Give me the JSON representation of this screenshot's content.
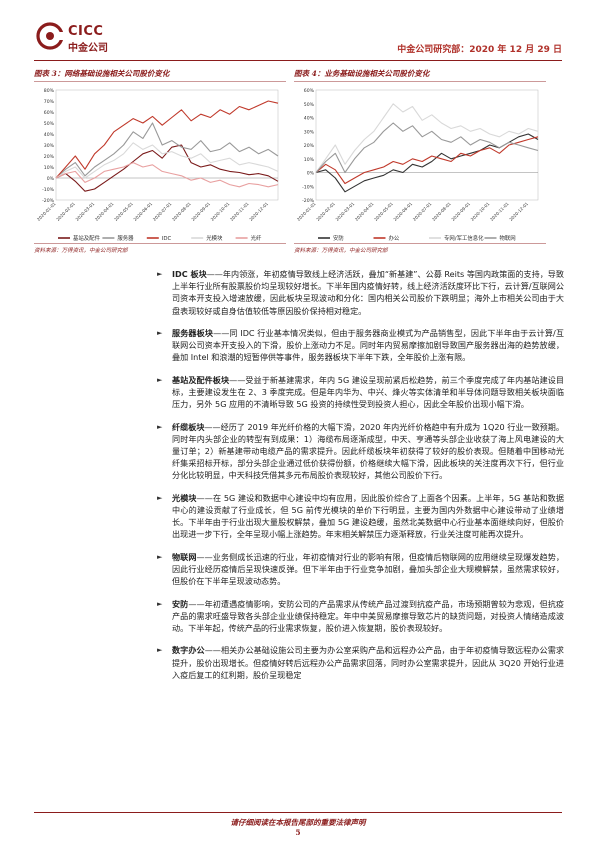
{
  "header": {
    "logo_en": "CICC",
    "logo_cn": "中金公司",
    "right_text": "中金公司研究部：2020 年 12 月 29 日"
  },
  "figures": {
    "left_title": "图表 3：网络基础设施相关公司股价变化",
    "right_title": "图表 4：业务基础设施相关公司股价变化",
    "left_source": "资料来源：万得资讯，中金公司研究部",
    "right_source": "资料来源：万得资讯，中金公司研究部"
  },
  "chart_data": [
    {
      "type": "line",
      "title": "图表 3：网络基础设施相关公司股价变化",
      "ylim": [
        -20,
        80
      ],
      "ytick_labels": [
        "80%",
        "70%",
        "60%",
        "50%",
        "40%",
        "30%",
        "20%",
        "10%",
        "0%",
        "-10%",
        "-20%"
      ],
      "x_tick_labels": [
        "2020-01-01",
        "2020-02-01",
        "2020-03-01",
        "2020-04-01",
        "2020-05-01",
        "2020-06-01",
        "2020-07-01",
        "2020-08-01",
        "2020-09-01",
        "2020-10-01",
        "2020-11-01",
        "2020-12-01"
      ],
      "x": [
        0,
        0.5,
        1,
        1.5,
        2,
        2.5,
        3,
        3.5,
        4,
        4.5,
        5,
        5.5,
        6,
        6.5,
        7,
        7.5,
        8,
        8.5,
        9,
        9.5,
        10,
        10.5,
        11,
        11.5
      ],
      "series": [
        {
          "name": "基站及配件",
          "color": "#7a1a1a",
          "values": [
            0,
            4,
            -3,
            -12,
            -10,
            -4,
            2,
            8,
            15,
            22,
            25,
            18,
            28,
            30,
            14,
            10,
            12,
            8,
            6,
            5,
            3,
            4,
            2,
            -3
          ]
        },
        {
          "name": "服务器",
          "color": "#999999",
          "values": [
            0,
            8,
            14,
            2,
            10,
            16,
            22,
            30,
            42,
            36,
            50,
            30,
            34,
            28,
            26,
            34,
            24,
            26,
            32,
            24,
            28,
            22,
            26,
            20
          ]
        },
        {
          "name": "IDC",
          "color": "#c0392b",
          "values": [
            0,
            10,
            20,
            8,
            22,
            30,
            42,
            48,
            54,
            50,
            56,
            48,
            55,
            62,
            52,
            58,
            55,
            62,
            58,
            65,
            62,
            66,
            70,
            68
          ]
        },
        {
          "name": "光模块",
          "color": "#d9d9d9",
          "values": [
            0,
            6,
            10,
            0,
            6,
            12,
            16,
            22,
            32,
            26,
            30,
            22,
            24,
            20,
            18,
            22,
            14,
            16,
            18,
            12,
            14,
            12,
            10,
            6
          ]
        },
        {
          "name": "光纤",
          "color": "#e8a0a0",
          "values": [
            0,
            4,
            6,
            -4,
            0,
            6,
            8,
            10,
            14,
            10,
            12,
            6,
            4,
            2,
            -2,
            0,
            -4,
            -2,
            -6,
            -8,
            -5,
            -6,
            -8,
            -6
          ]
        }
      ]
    },
    {
      "type": "line",
      "title": "图表 4：业务基础设施相关公司股价变化",
      "ylim": [
        -20,
        60
      ],
      "ytick_labels": [
        "60%",
        "50%",
        "40%",
        "30%",
        "20%",
        "10%",
        "0%",
        "-10%",
        "-20%"
      ],
      "x_tick_labels": [
        "2020-01-01",
        "2020-02-01",
        "2020-03-01",
        "2020-04-01",
        "2020-05-01",
        "2020-06-01",
        "2020-07-01",
        "2020-08-01",
        "2020-09-01",
        "2020-10-01",
        "2020-11-01",
        "2020-12-01"
      ],
      "x": [
        0,
        0.5,
        1,
        1.5,
        2,
        2.5,
        3,
        3.5,
        4,
        4.5,
        5,
        5.5,
        6,
        6.5,
        7,
        7.5,
        8,
        8.5,
        9,
        9.5,
        10,
        10.5,
        11,
        11.5
      ],
      "series": [
        {
          "name": "安防",
          "color": "#333333",
          "values": [
            0,
            2,
            -4,
            -14,
            -10,
            -6,
            -4,
            -2,
            2,
            0,
            6,
            4,
            8,
            14,
            10,
            12,
            14,
            16,
            20,
            18,
            22,
            26,
            28,
            24
          ]
        },
        {
          "name": "办公",
          "color": "#c0392b",
          "values": [
            0,
            6,
            2,
            -8,
            -4,
            0,
            2,
            4,
            8,
            6,
            10,
            8,
            12,
            10,
            8,
            14,
            12,
            16,
            18,
            14,
            20,
            22,
            24,
            26
          ]
        },
        {
          "name": "专网/军工信息化",
          "color": "#d9d9d9",
          "values": [
            0,
            10,
            20,
            6,
            16,
            24,
            30,
            40,
            50,
            44,
            48,
            38,
            42,
            36,
            32,
            34,
            30,
            32,
            28,
            26,
            30,
            28,
            32,
            30
          ]
        },
        {
          "name": "物联网",
          "color": "#999999",
          "values": [
            0,
            8,
            14,
            0,
            10,
            18,
            22,
            30,
            36,
            30,
            34,
            26,
            30,
            24,
            22,
            26,
            20,
            24,
            22,
            18,
            22,
            20,
            18,
            16
          ]
        }
      ]
    }
  ],
  "paragraphs": [
    {
      "head": "IDC 板块",
      "text": "——年内领涨，年初疫情导致线上经济活跃，叠加“新基建”、公募 Reits 等国内政策面的支持，导致上半年行业所有股票股价均呈现较好增长。下半年国内疫情好转，线上经济活跃度环比下行，云计算/互联网公司资本开支投入增速放缓，因此板块呈现波动和分化：国内相关公司股价下跌明显；海外上市相关公司由于大盘表现较好或自身估值较低等原因股价保持相对稳定。"
    },
    {
      "head": "服务器板块",
      "text": "——同 IDC 行业基本情况类似，但由于服务器商业模式为产品销售型，因此下半年由于云计算/互联网公司资本开支投入的下滑，股价上涨动力不足。同时年内贸易摩擦加剧导致国产服务器出海的趋势放缓，叠加 Intel 和浪潮的短暂停供等事件，服务器板块下半年下跌，全年股价上涨有限。"
    },
    {
      "head": "基站及配件板块",
      "text": "——受益于新基建需求，年内 5G 建设呈现前紧后松趋势，前三个季度完成了年内基站建设目标，主要建设发生在 2、3 季度完成。但是年内华为、中兴、烽火等实体清单和半导体问题导致相关板块面临压力，另外 5G 应用的不清晰导致 5G 投资的持续性受到投资人担心，因此全年股价出现小幅下滑。"
    },
    {
      "head": "纤缆板块",
      "text": "——经历了 2019 年光纤价格的大幅下滑，2020 年内光纤价格趋中有升成为 1Q20 行业一致预期。同时年内头部企业的转型有到成果：1）海缆布局逐渐成型，中天、亨通等头部企业收获了海上风电建设的大量订单；2）新基建带动电缆产品的需求提升。因此纤缆板块年初获得了较好的股价表现。但随着中国移动光纤集采招标开标，部分头部企业通过低价获得份额，价格继续大幅下滑，因此板块的关注度再次下行，但行业分化比较明显，中天科技凭借其多元布局股价表现较好，其他公司股价下行。"
    },
    {
      "head": "光模块",
      "text": "——在 5G 建设和数据中心建设中均有应用，因此股价综合了上面各个因素。上半年，5G 基站和数据中心的建设贡献了行业成长，但 5G 前传光模块的单价下行明显，主要为国内外数据中心建设带动了业绩增长。下半年由于行业出现大量股权解禁，叠加 5G 建设趋缓，虽然北美数据中心行业基本面继续向好，但股价出现进一步下行，全年呈现小幅上涨趋势。年末相关解禁压力逐渐释放，行业关注度可能再次提升。"
    },
    {
      "head": "物联网",
      "text": "——业务侧成长迅速的行业，年初疫情对行业的影响有限，但疫情后物联网的应用继续呈现爆发趋势，因此行业经历疫情后呈现快速反弹。但下半年由于行业竞争加剧，叠加头部企业大规模解禁，虽然需求较好，但股价在下半年呈现波动态势。"
    },
    {
      "head": "安防",
      "text": "——年初遭遇疫情影响，安防公司的产品需求从传统产品过渡到抗疫产品，市场预期曾较为悲观，但抗疫产品的需求旺盛导致各头部企业业绩保持稳定。年中中美贸易摩擦导致芯片的缺货问题，对投资人情绪造成波动。下半年起，传统产品的行业需求恢复，股价进入恢复期，股价表现较好。"
    },
    {
      "head": "数字办公",
      "text": "——相关办公基础设施公司主要为办公室采购产品和远程办公产品，由于年初疫情导致远程办公需求提升，股价出现增长。但疫情好转后远程办公产品需求回落，同时办公室需求提升，因此从 3Q20 开始行业进入疫后复工的红利期，股价呈现稳定"
    }
  ],
  "footer": {
    "disclaimer": "请仔细阅读在本报告尾部的重要法律声明",
    "page": "5"
  }
}
